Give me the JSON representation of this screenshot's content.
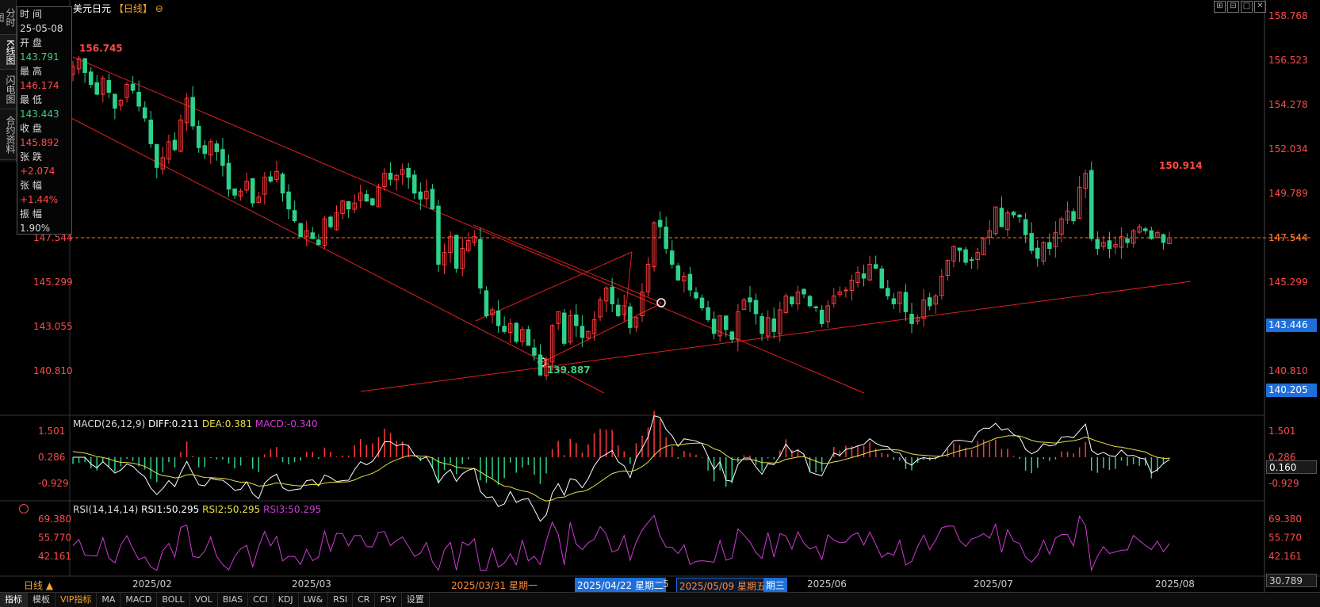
{
  "left_tabs": [
    {
      "label": "分时图"
    },
    {
      "label": "K线图"
    },
    {
      "label": "闪电图"
    },
    {
      "label": "合约资料"
    }
  ],
  "info_box": {
    "time_label": "时 间",
    "time_value": "25-05-08",
    "open_label": "开 盘",
    "open_value": "143.791",
    "high_label": "最 高",
    "high_value": "146.174",
    "low_label": "最 低",
    "low_value": "143.443",
    "close_label": "收 盘",
    "close_value": "145.892",
    "change_label": "张 跌",
    "change_value": "+2.074",
    "pct_label": "张 幅",
    "pct_value": "+1.44%",
    "amp_label": "振 幅",
    "amp_value": "1.90%",
    "partial_value": "147.544"
  },
  "header": {
    "symbol": "美元日元",
    "period": "【日线】",
    "icon": "circle-minus-icon"
  },
  "window_buttons": [
    "⊞",
    "⊟",
    "□",
    "✕"
  ],
  "price_axis": [
    "158.768",
    "156.523",
    "154.278",
    "152.034",
    "149.789",
    "147.544",
    "145.299",
    "143.055",
    "140.810"
  ],
  "current_price": "147.544",
  "price_tags": {
    "cursor": "143.446",
    "low": "140.205"
  },
  "annotations": {
    "high1": "156.745",
    "low1": "139.887",
    "high2": "150.914"
  },
  "macd": {
    "label": "MACD(26,12,9)",
    "diff": "DIFF:0.211",
    "dea": "DEA:0.381",
    "macd": "MACD:-0.340",
    "axis_left": [
      "1.501",
      "0.286",
      "-0.929"
    ],
    "axis_right": [
      "1.501",
      "0.286",
      "-0.929"
    ],
    "current": "0.160"
  },
  "rsi": {
    "label": "RSI(14,14,14)",
    "rsi1": "RSI1:50.295",
    "rsi2": "RSI2:50.295",
    "rsi3": "RSI3:50.295",
    "axis_left": [
      "69.380",
      "55.770",
      "42.161"
    ],
    "axis_right": [
      "69.380",
      "55.770",
      "42.161",
      "30.789"
    ]
  },
  "date_axis": {
    "period_button": "日线 ▲",
    "labels": [
      "2025/02",
      "2025/03",
      "2025/06",
      "2025/07",
      "2025/08"
    ],
    "highlight1": "2025/03/31 星期一",
    "highlight2": "2025/04/22 星期二",
    "highlight3": "2025/05/09 星期五",
    "highlight3_tail": "期三",
    "stray": "5"
  },
  "bottom_tabs": [
    "指标",
    "模板",
    "VIP指标",
    "MA",
    "MACD",
    "BOLL",
    "VOL",
    "BIAS",
    "CCI",
    "KDJ",
    "LW&",
    "RSI",
    "CR",
    "PSY",
    "设置"
  ],
  "colors": {
    "up": "#ff3b3b",
    "down": "#2fd08a",
    "axis_red": "#ff4a4a",
    "trend": "#e02020",
    "diff": "#ffffff",
    "dea": "#e8e04a",
    "rsi": "#d23ad6"
  },
  "chart_data": {
    "type": "candlestick",
    "y_range": [
      139.0,
      159.5
    ],
    "candles": []
  }
}
